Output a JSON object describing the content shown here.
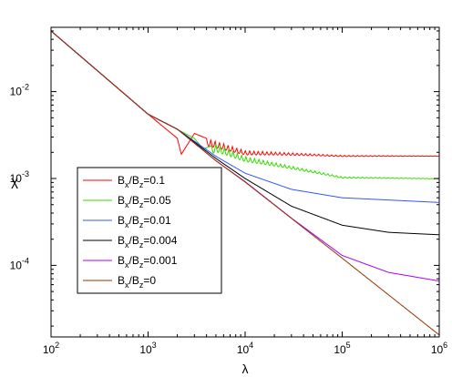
{
  "chart_data": {
    "type": "line",
    "title": "",
    "xlabel": "λ",
    "ylabel": "χ",
    "xscale": "log",
    "yscale": "log",
    "xlim": [
      100,
      1000000
    ],
    "ylim": [
      1.5e-05,
      0.055
    ],
    "grid": false,
    "legend_position": "bottom-left",
    "x_ticks": [
      {
        "value": 100,
        "base": "10",
        "exp": "2"
      },
      {
        "value": 1000,
        "base": "10",
        "exp": "3"
      },
      {
        "value": 10000,
        "base": "10",
        "exp": "4"
      },
      {
        "value": 100000,
        "base": "10",
        "exp": "5"
      },
      {
        "value": 1000000,
        "base": "10",
        "exp": "6"
      }
    ],
    "y_ticks": [
      {
        "value": 0.01,
        "base": "10",
        "exp": "-2"
      },
      {
        "value": 0.001,
        "base": "10",
        "exp": "-3"
      },
      {
        "value": 0.0001,
        "base": "10",
        "exp": "-4"
      }
    ],
    "series": [
      {
        "name": "Bx/Bz=0.1",
        "label_parts": [
          "B",
          "x",
          "/B",
          "z",
          "=0.1"
        ],
        "color": "#ff0000",
        "x": [
          100,
          1000,
          2000,
          2200,
          3000,
          4000,
          10000,
          100000,
          1000000
        ],
        "y": [
          0.05,
          0.0055,
          0.0029,
          0.0019,
          0.0033,
          0.0029,
          0.0021,
          0.00185,
          0.00182
        ],
        "oscillation_start": 4000,
        "oscillation_depth": 0.18,
        "oscillation_freq": 45
      },
      {
        "name": "Bx/Bz=0.05",
        "label_parts": [
          "B",
          "x",
          "/B",
          "z",
          "=0.05"
        ],
        "color": "#33dd00",
        "x": [
          100,
          1000,
          3000,
          3700,
          5000,
          10000,
          100000,
          1000000
        ],
        "y": [
          0.05,
          0.0055,
          0.0029,
          0.00218,
          0.0025,
          0.0018,
          0.00105,
          0.001
        ],
        "oscillation_start": 4500,
        "oscillation_depth": 0.2,
        "oscillation_freq": 45
      },
      {
        "name": "Bx/Bz=0.01",
        "label_parts": [
          "B",
          "x",
          "/B",
          "z",
          "=0.01"
        ],
        "color": "#3355ff",
        "x": [
          100,
          1000,
          2000,
          5000,
          10000,
          30000,
          100000,
          1000000
        ],
        "y": [
          0.05,
          0.0055,
          0.0037,
          0.0018,
          0.00115,
          0.00075,
          0.0006,
          0.00053
        ]
      },
      {
        "name": "Bx/Bz=0.004",
        "label_parts": [
          "B",
          "x",
          "/B",
          "z",
          "=0.004"
        ],
        "color": "#000000",
        "x": [
          100,
          1000,
          2000,
          5000,
          10000,
          30000,
          100000,
          300000,
          1000000
        ],
        "y": [
          0.05,
          0.0055,
          0.0037,
          0.0017,
          0.001,
          0.00048,
          0.00029,
          0.00024,
          0.000225
        ]
      },
      {
        "name": "Bx/Bz=0.001",
        "label_parts": [
          "B",
          "x",
          "/B",
          "z",
          "=0.001"
        ],
        "color": "#aa00ff",
        "x": [
          100,
          1000,
          2000,
          5000,
          10000,
          30000,
          100000,
          300000,
          1000000
        ],
        "y": [
          0.05,
          0.0055,
          0.0037,
          0.0016,
          0.00092,
          0.00035,
          0.00013,
          8.3e-05,
          6.6e-05
        ]
      },
      {
        "name": "Bx/Bz=0",
        "label_parts": [
          "B",
          "x",
          "/B",
          "z",
          "=0"
        ],
        "color": "#993300",
        "x": [
          100,
          1000,
          2000,
          5000,
          10000,
          100000,
          1000000
        ],
        "y": [
          0.05,
          0.0055,
          0.0037,
          0.0016,
          0.00091,
          0.000121,
          1.58e-05
        ]
      }
    ]
  }
}
